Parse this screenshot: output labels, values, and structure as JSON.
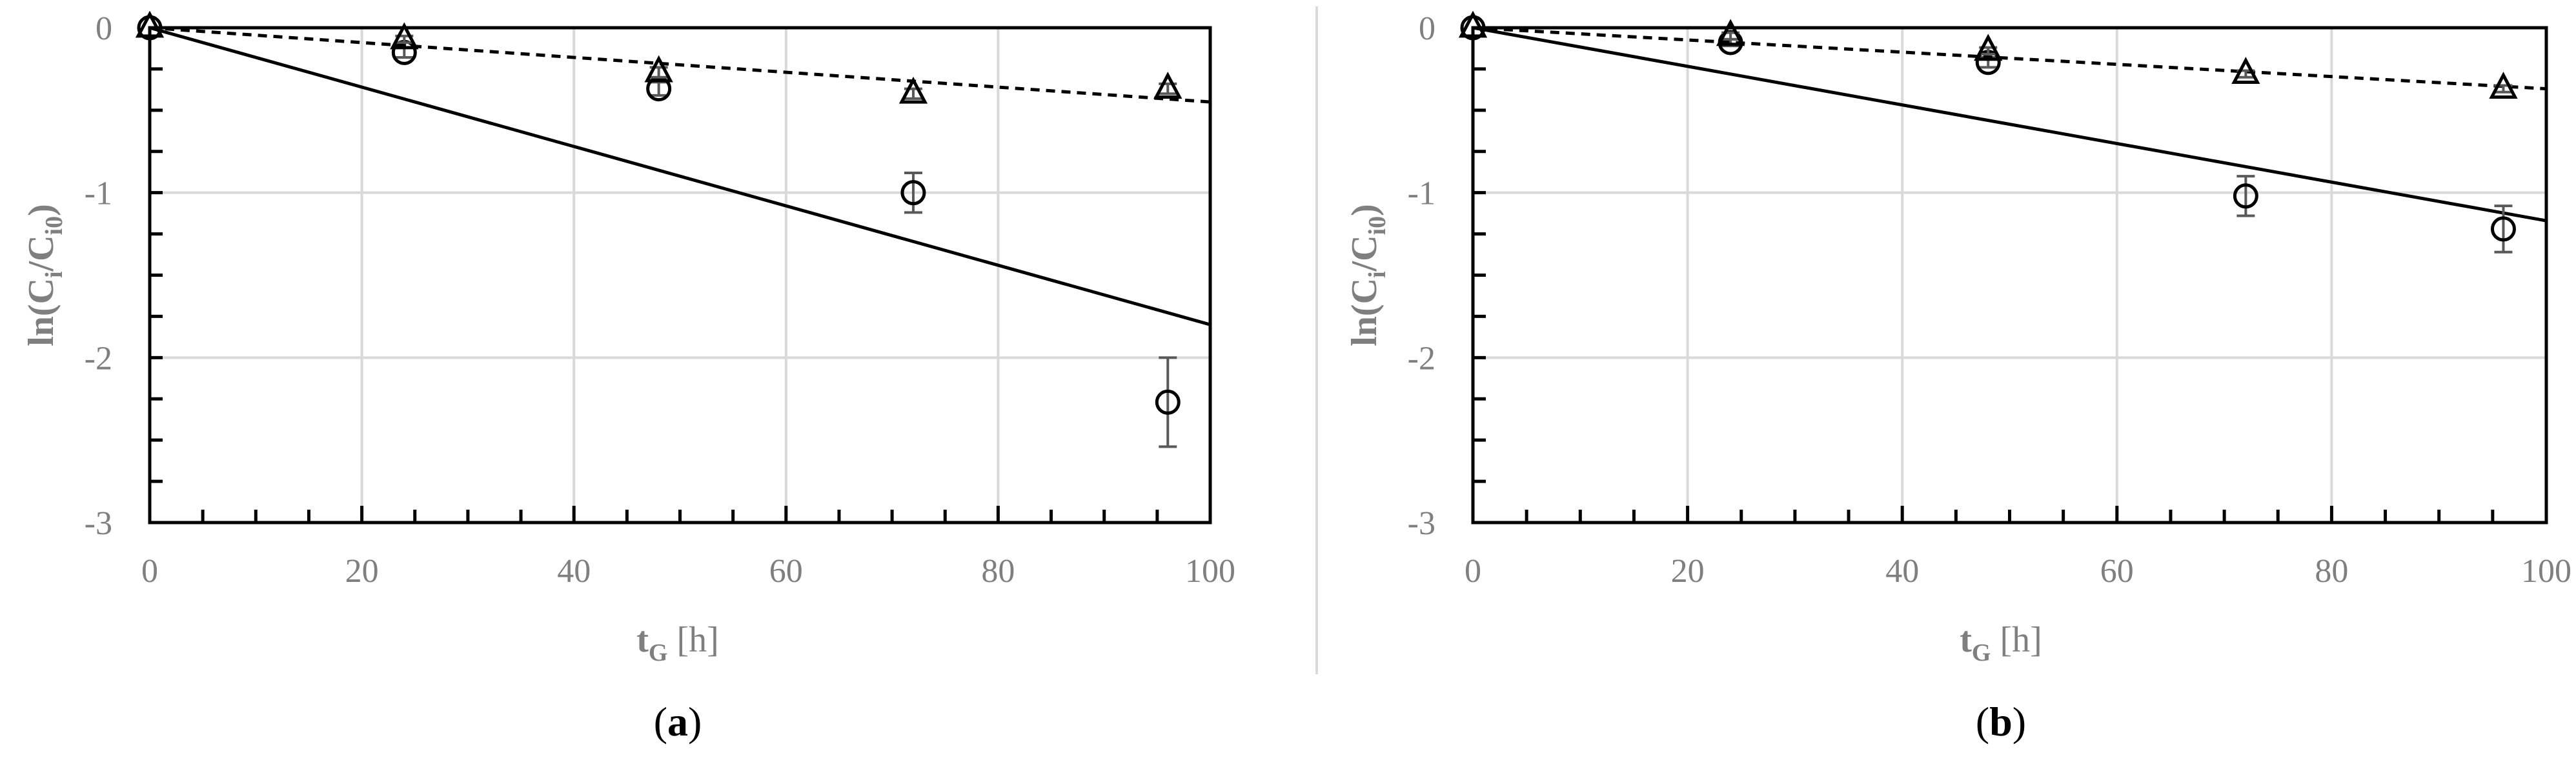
{
  "figure": {
    "divider_color": "#d9d9d9"
  },
  "chart_data": [
    {
      "type": "scatter",
      "panel_label": "(a)",
      "xlabel": {
        "main": "t",
        "sub": "G",
        "unit": " [h]"
      },
      "ylabel": {
        "lead": "ln(C",
        "sub1": "i",
        "mid": "/C",
        "sub2": "i0",
        "tail": ")"
      },
      "xlim": [
        0,
        100
      ],
      "ylim": [
        -3,
        0
      ],
      "xticks": [
        0,
        20,
        40,
        60,
        80,
        100
      ],
      "yticks": [
        0,
        -1,
        -2,
        -3
      ],
      "grid": true,
      "series": [
        {
          "marker": "circle",
          "x": [
            0,
            24,
            48,
            72,
            96
          ],
          "y": [
            0,
            -0.15,
            -0.37,
            -1.0,
            -2.27
          ],
          "err": [
            0,
            0.03,
            0.04,
            0.12,
            0.27
          ],
          "fit": {
            "style": "solid",
            "slope": -0.018,
            "intercept": 0
          }
        },
        {
          "marker": "triangle",
          "x": [
            0,
            24,
            48,
            72,
            96
          ],
          "y": [
            0,
            -0.07,
            -0.27,
            -0.4,
            -0.37
          ],
          "err": [
            0,
            0.02,
            0.03,
            0.03,
            0.03
          ],
          "fit": {
            "style": "dashed",
            "slope": -0.0045,
            "intercept": 0
          }
        }
      ]
    },
    {
      "type": "scatter",
      "panel_label": "(b)",
      "xlabel": {
        "main": "t",
        "sub": "G",
        "unit": " [h]"
      },
      "ylabel": {
        "lead": "ln(C",
        "sub1": "i",
        "mid": "/C",
        "sub2": "i0",
        "tail": ")"
      },
      "xlim": [
        0,
        100
      ],
      "ylim": [
        -3,
        0
      ],
      "xticks": [
        0,
        20,
        40,
        60,
        80,
        100
      ],
      "yticks": [
        0,
        -1,
        -2,
        -3
      ],
      "grid": true,
      "series": [
        {
          "marker": "circle",
          "x": [
            0,
            24,
            48,
            72,
            96
          ],
          "y": [
            0,
            -0.09,
            -0.21,
            -1.02,
            -1.22
          ],
          "err": [
            0,
            0.02,
            0.03,
            0.12,
            0.14
          ],
          "fit": {
            "style": "solid",
            "slope": -0.0117,
            "intercept": 0
          }
        },
        {
          "marker": "triangle",
          "x": [
            0,
            24,
            48,
            72,
            96
          ],
          "y": [
            0,
            -0.05,
            -0.14,
            -0.28,
            -0.37
          ],
          "err": [
            0,
            0.02,
            0.02,
            0.02,
            0.02
          ],
          "fit": {
            "style": "dashed",
            "slope": -0.0037,
            "intercept": 0
          }
        }
      ]
    }
  ]
}
